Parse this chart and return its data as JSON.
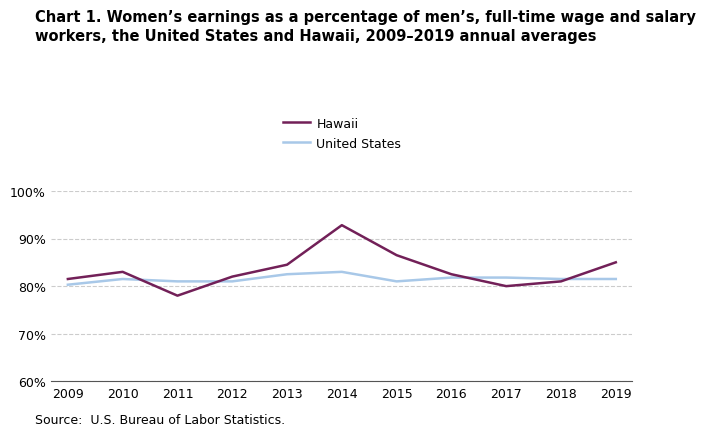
{
  "title_line1": "Chart 1. Women’s earnings as a percentage of men’s, full-time wage and salary",
  "title_line2": "workers, the United States and Hawaii, 2009–2019 annual averages",
  "years": [
    2009,
    2010,
    2011,
    2012,
    2013,
    2014,
    2015,
    2016,
    2017,
    2018,
    2019
  ],
  "hawaii": [
    81.5,
    83.0,
    78.0,
    82.0,
    84.5,
    92.8,
    86.5,
    82.5,
    80.0,
    81.0,
    85.0
  ],
  "us": [
    80.3,
    81.5,
    81.0,
    81.0,
    82.5,
    83.0,
    81.0,
    81.8,
    81.8,
    81.5,
    81.5
  ],
  "hawaii_color": "#722058",
  "us_color": "#A8C8E8",
  "ylim": [
    60,
    100
  ],
  "yticks": [
    60,
    70,
    80,
    90,
    100
  ],
  "source": "Source:  U.S. Bureau of Labor Statistics.",
  "legend_hawaii": "Hawaii",
  "legend_us": "United States",
  "linewidth": 1.8,
  "grid_color": "#cccccc",
  "title_fontsize": 10.5,
  "axis_fontsize": 9,
  "source_fontsize": 9
}
